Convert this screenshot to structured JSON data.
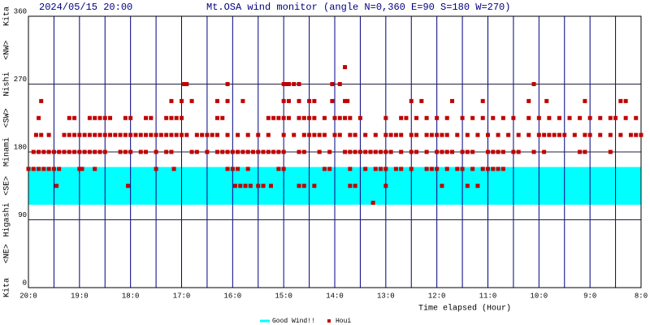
{
  "chart_data": {
    "type": "scatter",
    "date": "2024/05/15 20:00",
    "title": "Mt.OSA wind monitor (angle N=0,360 E=90 S=180 W=270)",
    "x_label": "Time elapsed (Hour)",
    "compass_labels": [
      {
        "value": 0,
        "label": "Kita"
      },
      {
        "value": 45,
        "label": "<NE>"
      },
      {
        "value": 90,
        "label": "Higashi"
      },
      {
        "value": 135,
        "label": "<SE>"
      },
      {
        "value": 180,
        "label": "Minami"
      },
      {
        "value": 225,
        "label": "<SW>"
      },
      {
        "value": 270,
        "label": "Nishi"
      },
      {
        "value": 315,
        "label": "<NW>"
      },
      {
        "value": 360,
        "label": "Kita"
      }
    ],
    "xlim": [
      0,
      12
    ],
    "ylim": [
      0,
      360
    ],
    "xticks": [
      {
        "value": 0,
        "label": "20:0"
      },
      {
        "value": 1,
        "label": "19:0"
      },
      {
        "value": 2,
        "label": "18:0"
      },
      {
        "value": 3,
        "label": "17:0"
      },
      {
        "value": 4,
        "label": "16:0"
      },
      {
        "value": 5,
        "label": "15:0"
      },
      {
        "value": 6,
        "label": "14:0"
      },
      {
        "value": 7,
        "label": "13:0"
      },
      {
        "value": 8,
        "label": "12:0"
      },
      {
        "value": 9,
        "label": "11:0"
      },
      {
        "value": 10,
        "label": "10:0"
      },
      {
        "value": 11,
        "label": "9:0"
      },
      {
        "value": 12,
        "label": "8:0"
      }
    ],
    "yticks": [
      0,
      90,
      180,
      270,
      360
    ],
    "grid": true,
    "minor_xgrid_step": 0.5,
    "band": {
      "name": "Good Wind!!",
      "color": "#00ffff",
      "range": [
        110,
        160
      ]
    },
    "series": [
      {
        "name": "Houi",
        "color": "#c00000",
        "x": [
          0.1,
          0.2,
          0.3,
          0.4,
          0.5,
          0.6,
          0.7,
          0.8,
          0.9,
          1.0,
          1.1,
          1.2,
          1.3,
          1.4,
          1.5,
          1.8,
          1.9,
          2.0,
          2.2,
          2.3,
          2.5,
          2.7,
          2.8,
          3.2,
          3.3,
          3.5,
          3.7,
          3.8,
          3.9,
          4.0,
          4.1,
          4.2,
          4.3,
          4.4,
          4.5,
          4.6,
          4.7,
          4.8,
          4.9,
          5.0,
          5.3,
          5.4,
          5.7,
          5.9,
          6.2,
          6.3,
          6.4,
          6.5,
          6.6,
          6.7,
          6.8,
          6.9,
          7.0,
          7.1,
          7.3,
          7.5,
          7.6,
          7.8,
          8.0,
          8.1,
          8.2,
          8.3,
          8.5,
          8.6,
          8.7,
          9.0,
          9.1,
          9.2,
          9.3,
          9.5,
          9.6,
          9.9,
          10.1,
          10.8,
          10.9,
          11.4,
          0.15,
          0.25,
          0.4,
          0.7,
          0.8,
          0.9,
          1.0,
          1.1,
          1.2,
          1.3,
          1.4,
          1.5,
          1.6,
          1.7,
          1.8,
          1.9,
          2.0,
          2.1,
          2.2,
          2.3,
          2.4,
          2.5,
          2.6,
          2.7,
          2.8,
          2.9,
          3.0,
          3.1,
          3.3,
          3.4,
          3.5,
          3.6,
          3.7,
          3.9,
          4.1,
          4.3,
          4.5,
          4.7,
          5.0,
          5.2,
          5.4,
          5.5,
          5.6,
          5.7,
          5.8,
          6.0,
          6.1,
          6.3,
          6.4,
          6.6,
          6.8,
          7.0,
          7.1,
          7.2,
          7.3,
          7.5,
          7.6,
          7.8,
          7.9,
          8.0,
          8.1,
          8.2,
          8.4,
          8.6,
          8.8,
          9.0,
          9.2,
          9.4,
          9.6,
          9.8,
          10.0,
          10.1,
          10.2,
          10.3,
          10.4,
          10.5,
          10.7,
          10.9,
          11.0,
          11.2,
          11.4,
          11.6,
          11.8,
          11.9,
          12.0,
          0.0,
          0.1,
          0.2,
          0.3,
          0.4,
          0.5,
          0.6,
          1.0,
          1.05,
          1.3,
          2.5,
          2.85,
          3.9,
          4.0,
          4.1,
          4.3,
          4.9,
          5.0,
          5.8,
          5.9,
          6.3,
          6.6,
          6.8,
          6.9,
          7.0,
          7.2,
          7.3,
          7.5,
          7.8,
          7.9,
          8.0,
          8.2,
          8.4,
          8.5,
          8.7,
          8.9,
          9.0,
          9.1,
          9.2,
          9.3,
          0.55,
          1.95,
          4.05,
          4.15,
          4.25,
          4.35,
          4.5,
          4.6,
          4.75,
          5.3,
          5.4,
          5.6,
          6.3,
          6.4,
          7.0,
          8.1,
          8.6,
          8.8,
          6.75,
          0.2,
          0.8,
          0.9,
          1.2,
          1.3,
          1.4,
          1.5,
          1.6,
          1.9,
          2.0,
          2.3,
          2.4,
          2.7,
          2.8,
          2.9,
          3.0,
          3.7,
          3.8,
          4.7,
          4.8,
          4.9,
          5.0,
          5.1,
          5.3,
          5.4,
          5.5,
          5.6,
          5.8,
          6.0,
          6.1,
          6.2,
          6.3,
          6.5,
          7.0,
          7.3,
          7.4,
          7.6,
          7.8,
          8.0,
          8.2,
          8.5,
          8.7,
          8.9,
          9.1,
          9.3,
          9.5,
          9.8,
          10.0,
          10.2,
          10.4,
          10.6,
          10.8,
          11.0,
          11.2,
          11.4,
          11.5,
          11.7,
          11.9,
          0.25,
          2.8,
          3.0,
          3.2,
          3.7,
          3.9,
          4.2,
          5.0,
          5.1,
          5.3,
          5.5,
          5.6,
          5.95,
          6.2,
          6.25,
          7.5,
          7.7,
          8.3,
          8.9,
          9.8,
          10.15,
          10.9,
          11.6,
          11.7,
          3.05,
          3.1,
          3.9,
          5.0,
          5.05,
          5.1,
          5.2,
          5.3,
          5.95,
          6.1,
          9.9,
          6.2
        ],
        "values": [
          180,
          180,
          180,
          180,
          180,
          180,
          180,
          180,
          180,
          180,
          180,
          180,
          180,
          180,
          180,
          180,
          180,
          180,
          180,
          180,
          180,
          180,
          180,
          180,
          180,
          180,
          180,
          180,
          180,
          180,
          180,
          180,
          180,
          180,
          180,
          180,
          180,
          180,
          180,
          180,
          180,
          180,
          180,
          180,
          180,
          180,
          180,
          180,
          180,
          180,
          180,
          180,
          180,
          180,
          180,
          180,
          180,
          180,
          180,
          180,
          180,
          180,
          180,
          180,
          180,
          180,
          180,
          180,
          180,
          180,
          180,
          180,
          180,
          180,
          180,
          180,
          202.5,
          202.5,
          202.5,
          202.5,
          202.5,
          202.5,
          202.5,
          202.5,
          202.5,
          202.5,
          202.5,
          202.5,
          202.5,
          202.5,
          202.5,
          202.5,
          202.5,
          202.5,
          202.5,
          202.5,
          202.5,
          202.5,
          202.5,
          202.5,
          202.5,
          202.5,
          202.5,
          202.5,
          202.5,
          202.5,
          202.5,
          202.5,
          202.5,
          202.5,
          202.5,
          202.5,
          202.5,
          202.5,
          202.5,
          202.5,
          202.5,
          202.5,
          202.5,
          202.5,
          202.5,
          202.5,
          202.5,
          202.5,
          202.5,
          202.5,
          202.5,
          202.5,
          202.5,
          202.5,
          202.5,
          202.5,
          202.5,
          202.5,
          202.5,
          202.5,
          202.5,
          202.5,
          202.5,
          202.5,
          202.5,
          202.5,
          202.5,
          202.5,
          202.5,
          202.5,
          202.5,
          202.5,
          202.5,
          202.5,
          202.5,
          202.5,
          202.5,
          202.5,
          202.5,
          202.5,
          202.5,
          202.5,
          202.5,
          202.5,
          202.5,
          157.5,
          157.5,
          157.5,
          157.5,
          157.5,
          157.5,
          157.5,
          157.5,
          157.5,
          157.5,
          157.5,
          157.5,
          157.5,
          157.5,
          157.5,
          157.5,
          157.5,
          157.5,
          157.5,
          157.5,
          157.5,
          157.5,
          157.5,
          157.5,
          157.5,
          157.5,
          157.5,
          157.5,
          157.5,
          157.5,
          157.5,
          157.5,
          157.5,
          157.5,
          157.5,
          157.5,
          157.5,
          157.5,
          157.5,
          157.5,
          135,
          135,
          135,
          135,
          135,
          135,
          135,
          135,
          135,
          135,
          135,
          135,
          135,
          135,
          135,
          135,
          135,
          135,
          112.5,
          225,
          225,
          225,
          225,
          225,
          225,
          225,
          225,
          225,
          225,
          225,
          225,
          225,
          225,
          225,
          225,
          225,
          225,
          225,
          225,
          225,
          225,
          225,
          225,
          225,
          225,
          225,
          225,
          225,
          225,
          225,
          225,
          225,
          225,
          225,
          225,
          225,
          225,
          225,
          225,
          225,
          225,
          225,
          225,
          225,
          225,
          225,
          225,
          225,
          225,
          225,
          225,
          225,
          225,
          225,
          225,
          225,
          225,
          247.5,
          247.5,
          247.5,
          247.5,
          247.5,
          247.5,
          247.5,
          247.5,
          247.5,
          247.5,
          247.5,
          247.5,
          247.5,
          247.5,
          247.5,
          247.5,
          247.5,
          247.5,
          247.5,
          247.5,
          247.5,
          247.5,
          247.5,
          247.5,
          270,
          270,
          270,
          270,
          270,
          270,
          270,
          270,
          270,
          270,
          270,
          292.5
        ]
      }
    ]
  }
}
